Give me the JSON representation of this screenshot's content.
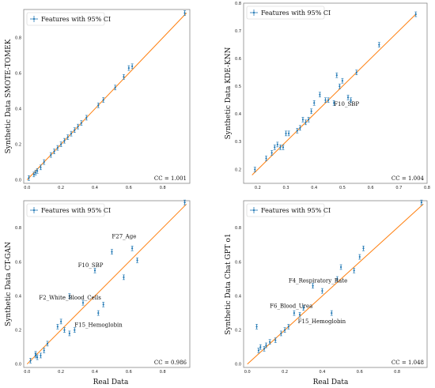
{
  "colors": {
    "fit": "#ff7f0e",
    "points": "#1f77b4",
    "frame": "#888888"
  },
  "x_axis_title": "Real Data",
  "chart_data": [
    {
      "type": "scatter",
      "ylabel": "Synthetic Data SMOTE-TOMEK",
      "xlabel": "",
      "legend": "Features with 95% CI",
      "legend_position": "top-left",
      "cc": "CC = 1.001",
      "xlim": [
        -0.02,
        0.96
      ],
      "ylim": [
        -0.02,
        0.96
      ],
      "xticks": [
        "0.0",
        "0.2",
        "0.4",
        "0.6",
        "0.8"
      ],
      "yticks": [
        "0.0",
        "0.2",
        "0.4",
        "0.6",
        "0.8"
      ],
      "fit": [
        [
          0,
          0
        ],
        [
          0.94,
          0.94
        ]
      ],
      "points": [
        [
          0.01,
          0.01
        ],
        [
          0.04,
          0.03
        ],
        [
          0.05,
          0.04
        ],
        [
          0.06,
          0.05
        ],
        [
          0.08,
          0.07
        ],
        [
          0.1,
          0.1
        ],
        [
          0.14,
          0.14
        ],
        [
          0.16,
          0.16
        ],
        [
          0.18,
          0.18
        ],
        [
          0.2,
          0.2
        ],
        [
          0.22,
          0.22
        ],
        [
          0.24,
          0.24
        ],
        [
          0.26,
          0.26
        ],
        [
          0.28,
          0.28
        ],
        [
          0.3,
          0.3
        ],
        [
          0.32,
          0.32
        ],
        [
          0.35,
          0.35
        ],
        [
          0.42,
          0.42
        ],
        [
          0.45,
          0.45
        ],
        [
          0.52,
          0.52
        ],
        [
          0.57,
          0.58
        ],
        [
          0.6,
          0.63
        ],
        [
          0.62,
          0.64
        ],
        [
          0.93,
          0.94
        ]
      ],
      "annotations": []
    },
    {
      "type": "scatter",
      "ylabel": "Synthetic Data KDE-KNN",
      "xlabel": "",
      "legend": "Features with 95% CI",
      "legend_position": "top-left",
      "cc": "CC = 1.004",
      "xlim": [
        0.15,
        0.8
      ],
      "ylim": [
        0.15,
        0.8
      ],
      "xticks": [
        "0.2",
        "0.3",
        "0.4",
        "0.5",
        "0.6",
        "0.7",
        "0.8"
      ],
      "yticks": [
        "0.2",
        "0.3",
        "0.4",
        "0.5",
        "0.6",
        "0.7",
        "0.8"
      ],
      "fit": [
        [
          0.18,
          0.18
        ],
        [
          0.76,
          0.76
        ]
      ],
      "points": [
        [
          0.19,
          0.2
        ],
        [
          0.23,
          0.24
        ],
        [
          0.25,
          0.26
        ],
        [
          0.26,
          0.28
        ],
        [
          0.27,
          0.29
        ],
        [
          0.28,
          0.28
        ],
        [
          0.29,
          0.28
        ],
        [
          0.3,
          0.33
        ],
        [
          0.31,
          0.33
        ],
        [
          0.34,
          0.34
        ],
        [
          0.35,
          0.35
        ],
        [
          0.36,
          0.38
        ],
        [
          0.37,
          0.37
        ],
        [
          0.38,
          0.38
        ],
        [
          0.39,
          0.41
        ],
        [
          0.4,
          0.44
        ],
        [
          0.42,
          0.47
        ],
        [
          0.44,
          0.45
        ],
        [
          0.45,
          0.45
        ],
        [
          0.47,
          0.44
        ],
        [
          0.48,
          0.54
        ],
        [
          0.49,
          0.5
        ],
        [
          0.5,
          0.52
        ],
        [
          0.52,
          0.46
        ],
        [
          0.53,
          0.45
        ],
        [
          0.55,
          0.55
        ],
        [
          0.63,
          0.65
        ],
        [
          0.76,
          0.76
        ]
      ],
      "annotations": [
        {
          "text": "F10_SBP",
          "x": 0.47,
          "y": 0.43
        }
      ]
    },
    {
      "type": "scatter",
      "ylabel": "Synthetic Data CT-GAN",
      "xlabel": "",
      "legend": "Features with 95% CI",
      "legend_position": "top-left",
      "cc": "CC = 0.986",
      "xlim": [
        -0.02,
        0.96
      ],
      "ylim": [
        -0.02,
        0.96
      ],
      "xticks": [
        "0.0",
        "0.2",
        "0.4",
        "0.6",
        "0.8"
      ],
      "yticks": [
        "0.0",
        "0.2",
        "0.4",
        "0.6",
        "0.8"
      ],
      "fit": [
        [
          0,
          0
        ],
        [
          0.94,
          0.94
        ]
      ],
      "points": [
        [
          0.02,
          0.02
        ],
        [
          0.05,
          0.05
        ],
        [
          0.05,
          0.06
        ],
        [
          0.06,
          0.04
        ],
        [
          0.08,
          0.05
        ],
        [
          0.1,
          0.08
        ],
        [
          0.12,
          0.12
        ],
        [
          0.18,
          0.22
        ],
        [
          0.2,
          0.25
        ],
        [
          0.22,
          0.2
        ],
        [
          0.25,
          0.18
        ],
        [
          0.25,
          0.4
        ],
        [
          0.28,
          0.2
        ],
        [
          0.33,
          0.36
        ],
        [
          0.4,
          0.55
        ],
        [
          0.42,
          0.3
        ],
        [
          0.45,
          0.35
        ],
        [
          0.5,
          0.66
        ],
        [
          0.57,
          0.51
        ],
        [
          0.62,
          0.68
        ],
        [
          0.65,
          0.61
        ],
        [
          0.93,
          0.95
        ]
      ],
      "annotations": [
        {
          "text": "F27_Age",
          "x": 0.5,
          "y": 0.74
        },
        {
          "text": "F10_SBP",
          "x": 0.3,
          "y": 0.57
        },
        {
          "text": "F2_White_Blood_Cells",
          "x": 0.07,
          "y": 0.38
        },
        {
          "text": "F15_Hemoglobin",
          "x": 0.28,
          "y": 0.22
        }
      ]
    },
    {
      "type": "scatter",
      "ylabel": "Synthetic Data Chat GPT o1",
      "xlabel": "",
      "legend": "Features with 95% CI",
      "legend_position": "top-left",
      "cc": "CC = 1.048",
      "xlim": [
        -0.02,
        0.96
      ],
      "ylim": [
        -0.02,
        0.96
      ],
      "xticks": [
        "0.0",
        "0.2",
        "0.4",
        "0.6",
        "0.8"
      ],
      "yticks": [
        "0.0",
        "0.2",
        "0.4",
        "0.6",
        "0.8"
      ],
      "fit": [
        [
          0,
          0
        ],
        [
          0.94,
          0.94
        ]
      ],
      "points": [
        [
          0.05,
          0.22
        ],
        [
          0.06,
          0.08
        ],
        [
          0.07,
          0.1
        ],
        [
          0.09,
          0.09
        ],
        [
          0.1,
          0.11
        ],
        [
          0.12,
          0.13
        ],
        [
          0.15,
          0.14
        ],
        [
          0.18,
          0.18
        ],
        [
          0.2,
          0.2
        ],
        [
          0.22,
          0.22
        ],
        [
          0.25,
          0.3
        ],
        [
          0.28,
          0.29
        ],
        [
          0.3,
          0.33
        ],
        [
          0.35,
          0.46
        ],
        [
          0.4,
          0.43
        ],
        [
          0.45,
          0.3
        ],
        [
          0.48,
          0.5
        ],
        [
          0.5,
          0.57
        ],
        [
          0.57,
          0.55
        ],
        [
          0.6,
          0.63
        ],
        [
          0.62,
          0.68
        ],
        [
          0.93,
          0.95
        ]
      ],
      "annotations": [
        {
          "text": "F4_Respiratory_Rate",
          "x": 0.22,
          "y": 0.48
        },
        {
          "text": "F6_Blood_Urea",
          "x": 0.12,
          "y": 0.33
        },
        {
          "text": "F15_Hemoglobin",
          "x": 0.27,
          "y": 0.24
        }
      ]
    }
  ]
}
